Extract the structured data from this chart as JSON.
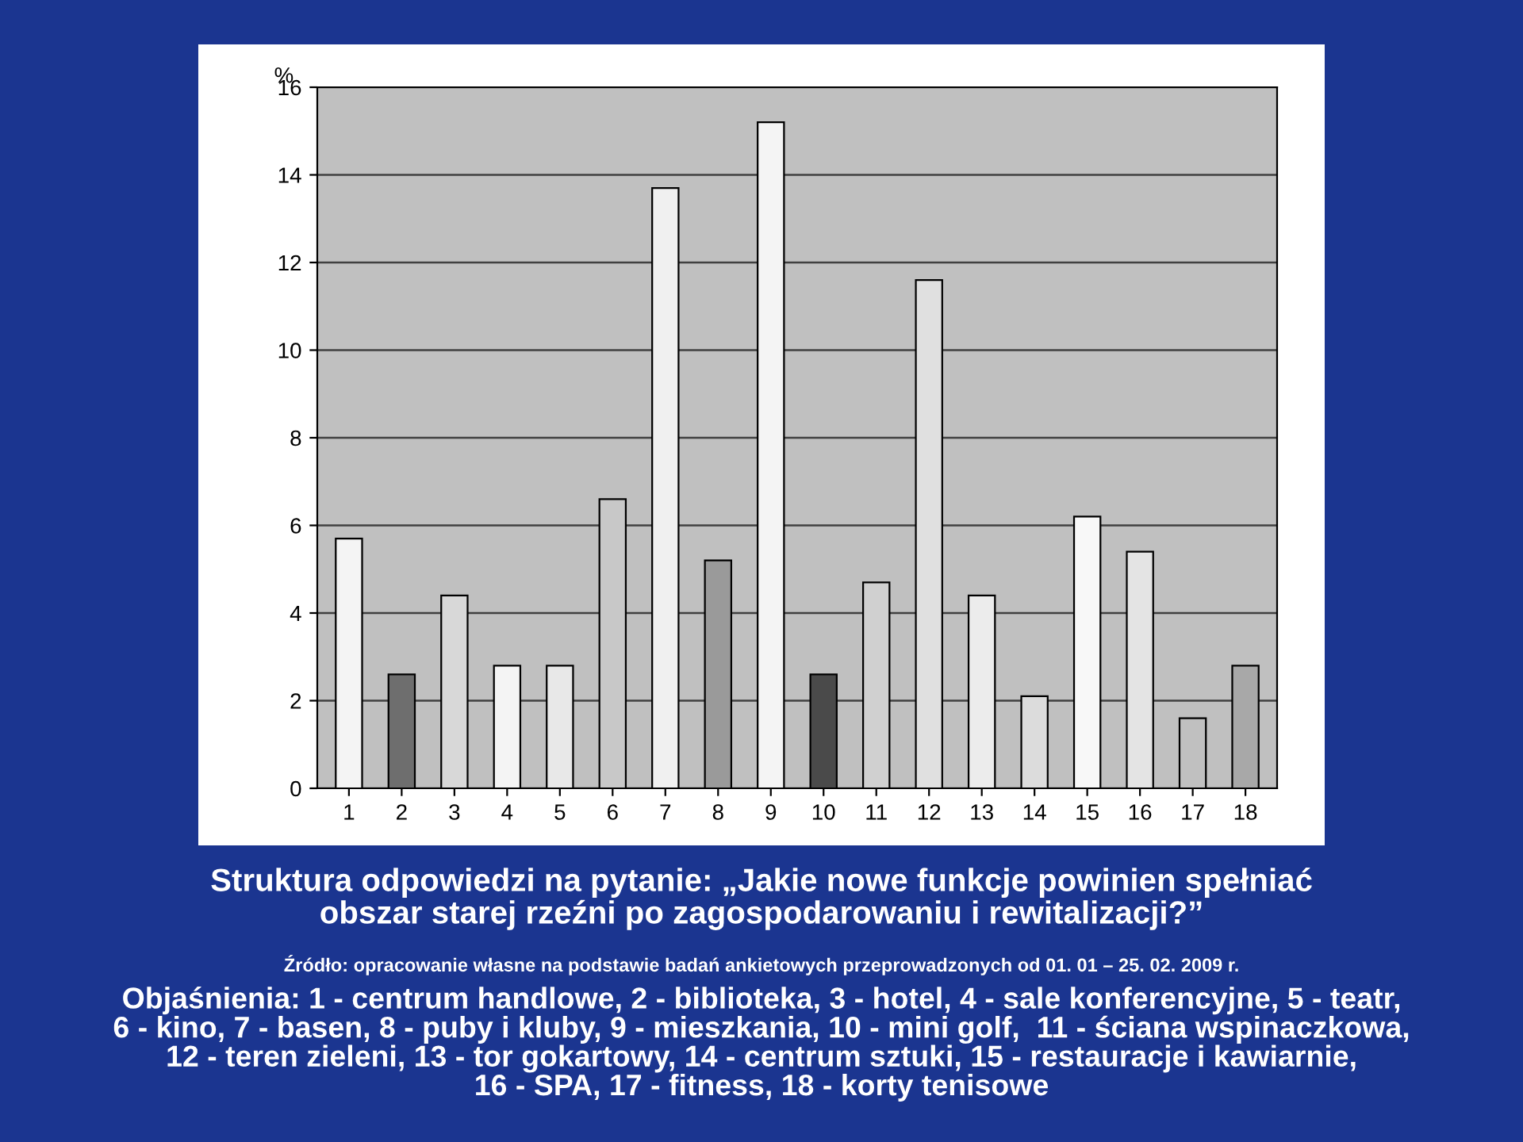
{
  "chart_data": {
    "type": "bar",
    "title": "Struktura odpowiedzi na pytanie: „Jakie nowe funkcje powinien spełniać\nobszar starej rzeźni po zagospodarowaniu i rewitalizacji?”",
    "ylabel": "%",
    "categories": [
      "1",
      "2",
      "3",
      "4",
      "5",
      "6",
      "7",
      "8",
      "9",
      "10",
      "11",
      "12",
      "13",
      "14",
      "15",
      "16",
      "17",
      "18"
    ],
    "values": [
      5.7,
      2.6,
      4.4,
      2.8,
      2.8,
      6.6,
      13.7,
      5.2,
      15.2,
      2.6,
      4.7,
      11.6,
      4.4,
      2.1,
      6.2,
      5.4,
      1.6,
      2.8
    ],
    "colors": [
      "#f4f4f4",
      "#6e6e6e",
      "#d8d8d8",
      "#f4f4f4",
      "#e8e8e8",
      "#c8c8c8",
      "#f0f0f0",
      "#9a9a9a",
      "#f4f4f4",
      "#4a4a4a",
      "#d0d0d0",
      "#e0e0e0",
      "#ececec",
      "#dcdcdc",
      "#f8f8f8",
      "#e4e4e4",
      "#c0c0c0",
      "#a8a8a8"
    ],
    "ylim": [
      0,
      16
    ],
    "yticks": [
      0,
      2,
      4,
      6,
      8,
      10,
      12,
      14,
      16
    ],
    "grid": "y",
    "annotations": [
      "Źródło: opracowanie własne na podstawie badań ankietowych przeprowadzonych od 01. 01 – 25. 02. 2009 r.",
      "Objaśnienia: 1 - centrum handlowe, 2 - biblioteka, 3 - hotel, 4 - sale konferencyjne, 5 - teatr,\n6 - kino, 7 - basen, 8 - puby i kluby, 9 - mieszkania, 10 - mini golf,  11 - ściana wspinaczkowa,\n12 - teren zieleni, 13 - tor gokartowy, 14 - centrum sztuki, 15 - restauracje i kawiarnie,\n16 - SPA, 17 - fitness, 18 - korty tenisowe"
    ]
  }
}
